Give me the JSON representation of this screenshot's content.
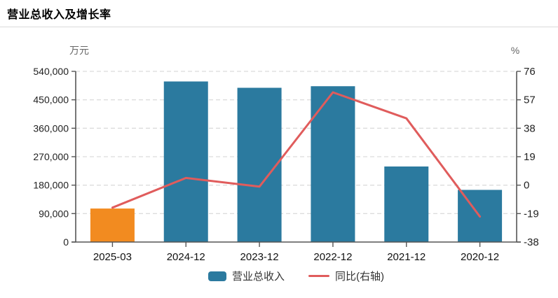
{
  "header": {
    "title": "营业总收入及增长率"
  },
  "chart_data": {
    "type": "bar+line",
    "title": "营业总收入及增长率",
    "categories": [
      "2025-03",
      "2024-12",
      "2023-12",
      "2022-12",
      "2021-12",
      "2020-12"
    ],
    "series": [
      {
        "name": "营业总收入",
        "type": "bar",
        "axis": "left",
        "unit": "万元",
        "values": [
          106000,
          508000,
          488000,
          493000,
          239000,
          165000
        ],
        "bar_colors": [
          "#f28b20",
          "#2b7a9f",
          "#2b7a9f",
          "#2b7a9f",
          "#2b7a9f",
          "#2b7a9f"
        ]
      },
      {
        "name": "同比(右轴)",
        "type": "line",
        "axis": "right",
        "unit": "%",
        "values": [
          -15,
          4.8,
          -1,
          62,
          44.6,
          -21
        ],
        "color": "#e05c5c"
      }
    ],
    "left_axis": {
      "label": "万元",
      "min": 0,
      "max": 540000,
      "ticks": [
        540000,
        450000,
        360000,
        270000,
        180000,
        90000,
        0
      ]
    },
    "right_axis": {
      "label": "%",
      "min": -38,
      "max": 76,
      "ticks": [
        76,
        57,
        38,
        19,
        0,
        -19,
        -38
      ]
    },
    "grid": true,
    "legend_position": "bottom"
  },
  "legend": {
    "bar_label": "营业总收入",
    "line_label": "同比(右轴)"
  },
  "colors": {
    "bar": "#2b7a9f",
    "bar_highlight": "#f28b20",
    "line": "#e05c5c",
    "gridline": "#dcdcdc",
    "axis": "#555555",
    "tick_text": "#222222",
    "unit_text": "#666666",
    "xlabel_text": "#111111"
  }
}
